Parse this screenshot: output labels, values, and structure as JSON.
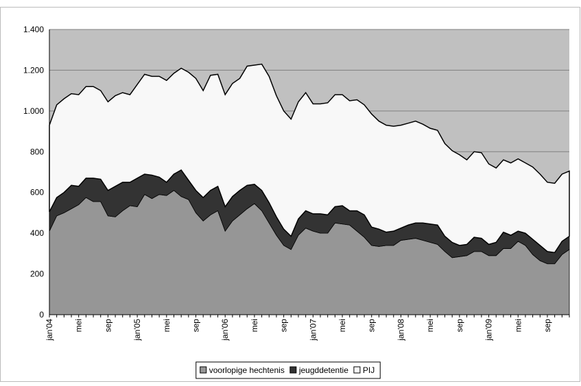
{
  "chart_data": {
    "type": "stacked-area",
    "categories": [
      "jan'04",
      null,
      null,
      null,
      "mei",
      null,
      null,
      null,
      "sep",
      null,
      null,
      null,
      "jan'05",
      null,
      null,
      null,
      "mei",
      null,
      null,
      null,
      "sep",
      null,
      null,
      null,
      "jan'06",
      null,
      null,
      null,
      "mei",
      null,
      null,
      null,
      "sep",
      null,
      null,
      null,
      "jan'07",
      null,
      null,
      null,
      "mei",
      null,
      null,
      null,
      "sep",
      null,
      null,
      null,
      "jan'08",
      null,
      null,
      null,
      "mei",
      null,
      null,
      null,
      "sep",
      null,
      null,
      null,
      "jan'09",
      null,
      null,
      null,
      "mei",
      null,
      null,
      null,
      "sep",
      null,
      null,
      null
    ],
    "series": [
      {
        "name": "voorlopige hechtenis",
        "color": "#969696",
        "values": [
          410,
          485,
          500,
          520,
          540,
          575,
          555,
          555,
          485,
          480,
          510,
          535,
          530,
          590,
          570,
          590,
          585,
          610,
          580,
          565,
          500,
          460,
          490,
          510,
          410,
          460,
          490,
          520,
          545,
          510,
          450,
          390,
          340,
          320,
          390,
          425,
          410,
          400,
          400,
          450,
          445,
          440,
          410,
          380,
          340,
          335,
          340,
          340,
          365,
          370,
          375,
          365,
          355,
          345,
          310,
          280,
          285,
          290,
          310,
          310,
          290,
          290,
          325,
          325,
          360,
          340,
          295,
          265,
          250,
          250,
          295,
          320
        ]
      },
      {
        "name": "jeugddetentie",
        "color": "#333333",
        "values": [
          95,
          90,
          100,
          115,
          90,
          95,
          115,
          110,
          125,
          150,
          140,
          115,
          140,
          100,
          115,
          85,
          65,
          80,
          130,
          95,
          110,
          115,
          120,
          120,
          120,
          120,
          120,
          115,
          95,
          100,
          100,
          90,
          80,
          65,
          80,
          85,
          85,
          95,
          90,
          80,
          90,
          70,
          100,
          110,
          90,
          85,
          65,
          70,
          60,
          70,
          75,
          85,
          90,
          95,
          75,
          75,
          55,
          55,
          70,
          65,
          55,
          65,
          80,
          65,
          50,
          60,
          75,
          75,
          60,
          55,
          65,
          65
        ]
      },
      {
        "name": "PIJ",
        "color": "#f8f8f8",
        "values": [
          425,
          455,
          460,
          450,
          450,
          450,
          450,
          435,
          435,
          445,
          440,
          430,
          460,
          490,
          485,
          495,
          500,
          495,
          500,
          530,
          550,
          525,
          565,
          550,
          550,
          555,
          550,
          585,
          585,
          620,
          620,
          595,
          580,
          575,
          575,
          580,
          540,
          540,
          550,
          550,
          545,
          540,
          545,
          540,
          555,
          530,
          525,
          515,
          505,
          500,
          500,
          485,
          470,
          465,
          455,
          450,
          445,
          415,
          420,
          420,
          395,
          365,
          355,
          355,
          355,
          345,
          355,
          350,
          340,
          340,
          330,
          320
        ]
      }
    ],
    "ylim": [
      0,
      1400
    ],
    "yticks": [
      0,
      200,
      400,
      600,
      800,
      {
        "value": 1000,
        "label": "1.000"
      },
      {
        "value": 1200,
        "label": "1.200"
      },
      {
        "value": 1400,
        "label": "1.400"
      }
    ],
    "grid": true,
    "plot_background": "#c0c0c0",
    "legend": "bottom"
  }
}
